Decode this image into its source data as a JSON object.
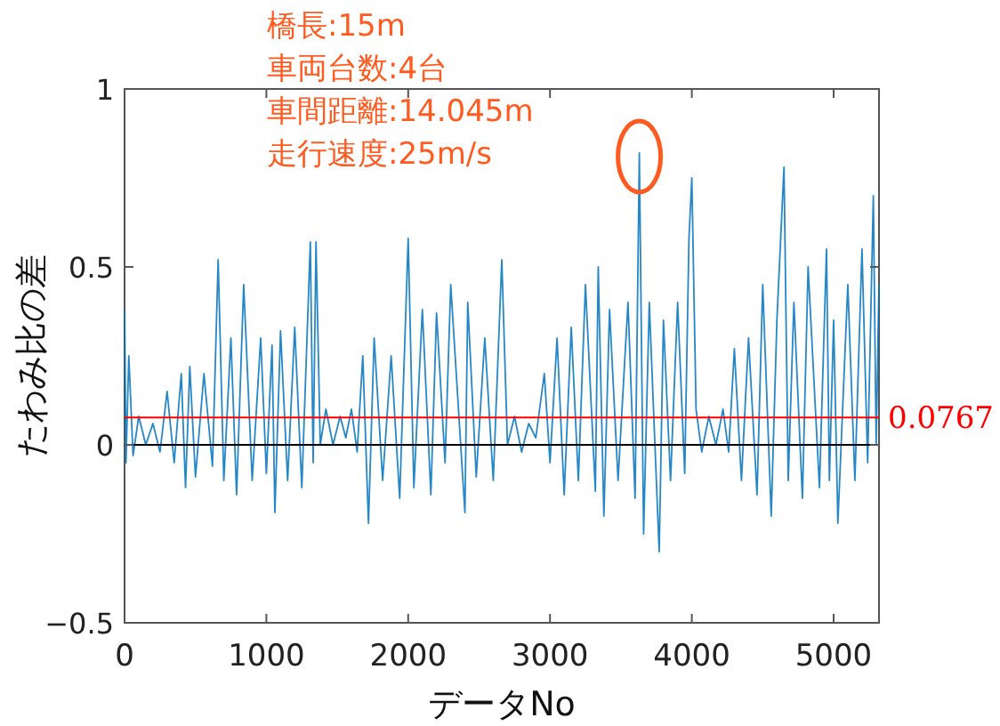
{
  "chart_data": {
    "type": "line",
    "xlabel": "データNo",
    "ylabel": "たわみ比の差",
    "annotations": [
      "橋長:15m",
      "車両台数:4台",
      "車間距離:14.045m",
      "走行速度:25m/s"
    ],
    "xlim": [
      0,
      5320
    ],
    "ylim": [
      -0.5,
      1
    ],
    "xticks": [
      0,
      1000,
      2000,
      3000,
      4000,
      5000
    ],
    "yticks": [
      {
        "value": -0.5,
        "label": "−0.5"
      },
      0,
      0.5,
      1
    ],
    "ref_lines": [
      {
        "axis": "y",
        "value": 0.0767,
        "label": "0.0767",
        "color": "#ff0000"
      },
      {
        "axis": "y",
        "value": 0,
        "color": "#000000"
      }
    ],
    "series": [
      {
        "color": "#0072bd",
        "x": [
          0,
          10,
          30,
          60,
          100,
          150,
          200,
          250,
          300,
          350,
          400,
          430,
          460,
          500,
          560,
          620,
          660,
          700,
          750,
          790,
          840,
          900,
          960,
          1000,
          1040,
          1060,
          1100,
          1150,
          1200,
          1250,
          1310,
          1330,
          1350,
          1380,
          1420,
          1470,
          1520,
          1560,
          1600,
          1640,
          1680,
          1720,
          1760,
          1820,
          1880,
          1940,
          2000,
          2040,
          2100,
          2160,
          2200,
          2260,
          2300,
          2400,
          2420,
          2480,
          2540,
          2600,
          2660,
          2700,
          2750,
          2800,
          2850,
          2900,
          2960,
          3000,
          3050,
          3100,
          3150,
          3200,
          3250,
          3320,
          3340,
          3380,
          3420,
          3480,
          3550,
          3600,
          3630,
          3660,
          3700,
          3770,
          3800,
          3850,
          3900,
          3950,
          3980,
          4000,
          4030,
          4070,
          4120,
          4170,
          4220,
          4260,
          4300,
          4350,
          4400,
          4460,
          4500,
          4560,
          4600,
          4650,
          4680,
          4720,
          4780,
          4820,
          4900,
          4950,
          4970,
          5000,
          5030,
          5100,
          5150,
          5200,
          5240,
          5280,
          5300,
          5320
        ],
        "values": [
          0.38,
          -0.05,
          0.25,
          -0.03,
          0.08,
          0.0,
          0.06,
          -0.02,
          0.15,
          -0.05,
          0.2,
          -0.12,
          0.22,
          -0.09,
          0.2,
          -0.06,
          0.52,
          -0.1,
          0.3,
          -0.14,
          0.45,
          -0.1,
          0.3,
          -0.08,
          0.28,
          -0.19,
          0.32,
          -0.1,
          0.33,
          -0.12,
          0.57,
          -0.05,
          0.57,
          0.0,
          0.1,
          0.0,
          0.08,
          0.02,
          0.1,
          -0.02,
          0.25,
          -0.22,
          0.3,
          -0.1,
          0.25,
          -0.15,
          0.58,
          -0.12,
          0.38,
          -0.14,
          0.37,
          -0.05,
          0.45,
          -0.19,
          0.4,
          -0.09,
          0.3,
          -0.1,
          0.52,
          0.0,
          0.08,
          -0.02,
          0.06,
          0.02,
          0.2,
          -0.05,
          0.3,
          -0.14,
          0.33,
          -0.1,
          0.45,
          -0.13,
          0.5,
          -0.2,
          0.38,
          -0.1,
          0.4,
          -0.15,
          0.82,
          -0.25,
          0.4,
          -0.3,
          0.35,
          -0.1,
          0.4,
          -0.08,
          0.58,
          0.75,
          0.1,
          -0.02,
          0.08,
          0.0,
          0.1,
          -0.02,
          0.27,
          -0.1,
          0.3,
          -0.14,
          0.45,
          -0.2,
          0.35,
          0.78,
          -0.1,
          0.4,
          -0.15,
          0.5,
          -0.12,
          0.55,
          -0.1,
          0.35,
          -0.22,
          0.45,
          -0.1,
          0.55,
          -0.05,
          0.7,
          0.0,
          0.45
        ]
      }
    ]
  }
}
